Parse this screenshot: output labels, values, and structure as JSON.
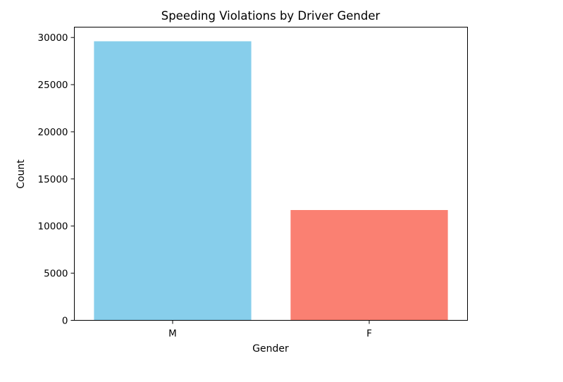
{
  "chart_data": {
    "type": "bar",
    "title": "Speeding Violations by Driver Gender",
    "xlabel": "Gender",
    "ylabel": "Count",
    "categories": [
      "M",
      "F"
    ],
    "values": [
      29600,
      11700
    ],
    "colors": [
      "#87ceeb",
      "#fa8072"
    ],
    "ylim": [
      0,
      31100
    ],
    "yticks": [
      0,
      5000,
      10000,
      15000,
      20000,
      25000,
      30000
    ],
    "grid": false,
    "legend": "none"
  }
}
